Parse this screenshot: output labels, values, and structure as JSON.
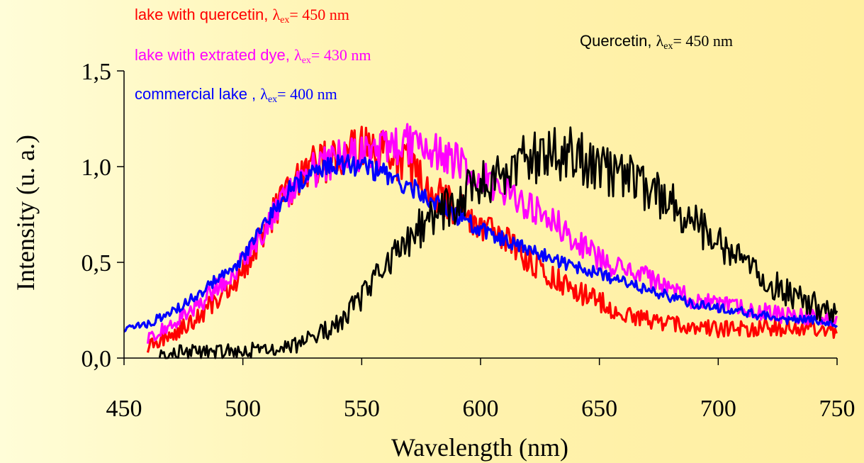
{
  "chart_data": {
    "type": "line",
    "xlabel": "Wavelength (nm)",
    "ylabel": "Intensity (u. a.)",
    "xlim": [
      450,
      750
    ],
    "ylim": [
      0,
      1.5
    ],
    "xticks": [
      450,
      500,
      550,
      600,
      650,
      700,
      750
    ],
    "xtick_labels": [
      "450",
      "500",
      "550",
      "600",
      "650",
      "700",
      "750"
    ],
    "yticks": [
      0,
      0.5,
      1.0,
      1.5
    ],
    "ytick_labels": [
      "0,0",
      "0,5",
      "1,0",
      "1,5"
    ],
    "grid": false,
    "legend_placement": "top",
    "series": [
      {
        "name": "lake with quercetin",
        "legend_prefix": "lake with quercetin, ",
        "excitation": "= 450 nm",
        "color": "#ff0000",
        "stroke_width": 3.2,
        "x": [
          460,
          470,
          480,
          490,
          500,
          510,
          520,
          530,
          540,
          550,
          560,
          570,
          580,
          590,
          600,
          610,
          620,
          630,
          640,
          650,
          660,
          670,
          680,
          690,
          700,
          710,
          720,
          730,
          740,
          750
        ],
        "values": [
          0.06,
          0.12,
          0.2,
          0.32,
          0.45,
          0.7,
          0.88,
          1.0,
          1.05,
          1.1,
          1.08,
          1.0,
          0.88,
          0.78,
          0.7,
          0.62,
          0.52,
          0.42,
          0.35,
          0.3,
          0.22,
          0.2,
          0.18,
          0.16,
          0.15,
          0.15,
          0.16,
          0.16,
          0.15,
          0.14
        ],
        "noise": 0.08
      },
      {
        "name": "lake with extrated dye",
        "legend_prefix": "lake with extrated dye, ",
        "excitation": "= 430 nm",
        "color": "#ff00ff",
        "stroke_width": 3.2,
        "x": [
          460,
          470,
          480,
          490,
          500,
          510,
          520,
          530,
          540,
          550,
          560,
          570,
          580,
          590,
          600,
          610,
          620,
          630,
          640,
          650,
          660,
          670,
          680,
          690,
          700,
          710,
          720,
          730,
          740,
          750
        ],
        "values": [
          0.1,
          0.18,
          0.26,
          0.38,
          0.5,
          0.7,
          0.86,
          0.98,
          1.05,
          1.07,
          1.1,
          1.12,
          1.1,
          1.02,
          0.95,
          0.88,
          0.8,
          0.72,
          0.62,
          0.52,
          0.45,
          0.42,
          0.36,
          0.3,
          0.28,
          0.26,
          0.24,
          0.22,
          0.22,
          0.2
        ],
        "noise": 0.07
      },
      {
        "name": "commercial lake",
        "legend_prefix": "commercial lake , ",
        "excitation": "= 400 nm",
        "color": "#0000ff",
        "stroke_width": 3.2,
        "x": [
          450,
          460,
          470,
          480,
          490,
          500,
          510,
          520,
          530,
          540,
          550,
          560,
          570,
          580,
          590,
          600,
          610,
          620,
          630,
          640,
          650,
          660,
          670,
          680,
          690,
          700,
          710,
          720,
          730,
          740,
          750
        ],
        "values": [
          0.15,
          0.18,
          0.24,
          0.32,
          0.42,
          0.52,
          0.72,
          0.88,
          0.98,
          1.02,
          1.0,
          0.96,
          0.9,
          0.82,
          0.74,
          0.68,
          0.62,
          0.56,
          0.52,
          0.48,
          0.44,
          0.4,
          0.36,
          0.32,
          0.28,
          0.26,
          0.24,
          0.22,
          0.2,
          0.2,
          0.18
        ],
        "noise": 0.04
      },
      {
        "name": "Quercetin",
        "legend_prefix": "Quercetin, ",
        "excitation": "= 450 nm",
        "color": "#000000",
        "stroke_width": 2.8,
        "x": [
          465,
          480,
          500,
          520,
          530,
          540,
          550,
          560,
          570,
          580,
          590,
          600,
          610,
          620,
          630,
          640,
          650,
          660,
          670,
          680,
          690,
          700,
          710,
          720,
          730,
          740,
          750
        ],
        "values": [
          0.02,
          0.03,
          0.04,
          0.06,
          0.1,
          0.18,
          0.32,
          0.5,
          0.62,
          0.75,
          0.82,
          0.9,
          0.98,
          1.03,
          1.08,
          1.06,
          1.0,
          0.95,
          0.88,
          0.8,
          0.7,
          0.6,
          0.5,
          0.4,
          0.34,
          0.28,
          0.22
        ],
        "noise": 0.1
      }
    ],
    "legend_symbol": "λ",
    "legend_subscript": "ex"
  }
}
